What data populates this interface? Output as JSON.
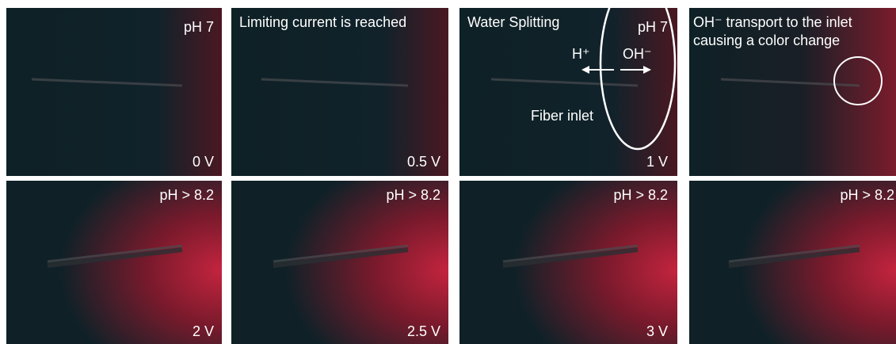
{
  "panels": [
    {
      "top": "pH 7",
      "bottom": "0 V"
    },
    {
      "top": "Limiting current is reached",
      "bottom": "0.5 V"
    },
    {
      "top": "Water Splitting",
      "top_right": "pH 7",
      "labels": [
        "H⁺",
        "OH⁻",
        "Fiber inlet"
      ],
      "bottom": "1 V"
    },
    {
      "top_lines": [
        "OH⁻ transport to the inlet",
        "causing a color change"
      ]
    },
    {
      "top": "pH > 8.2",
      "bottom": "2 V"
    },
    {
      "top": "pH > 8.2",
      "bottom": "2.5 V"
    },
    {
      "top": "pH > 8.2",
      "bottom": "3 V"
    },
    {
      "top": "pH > 8.2"
    }
  ]
}
